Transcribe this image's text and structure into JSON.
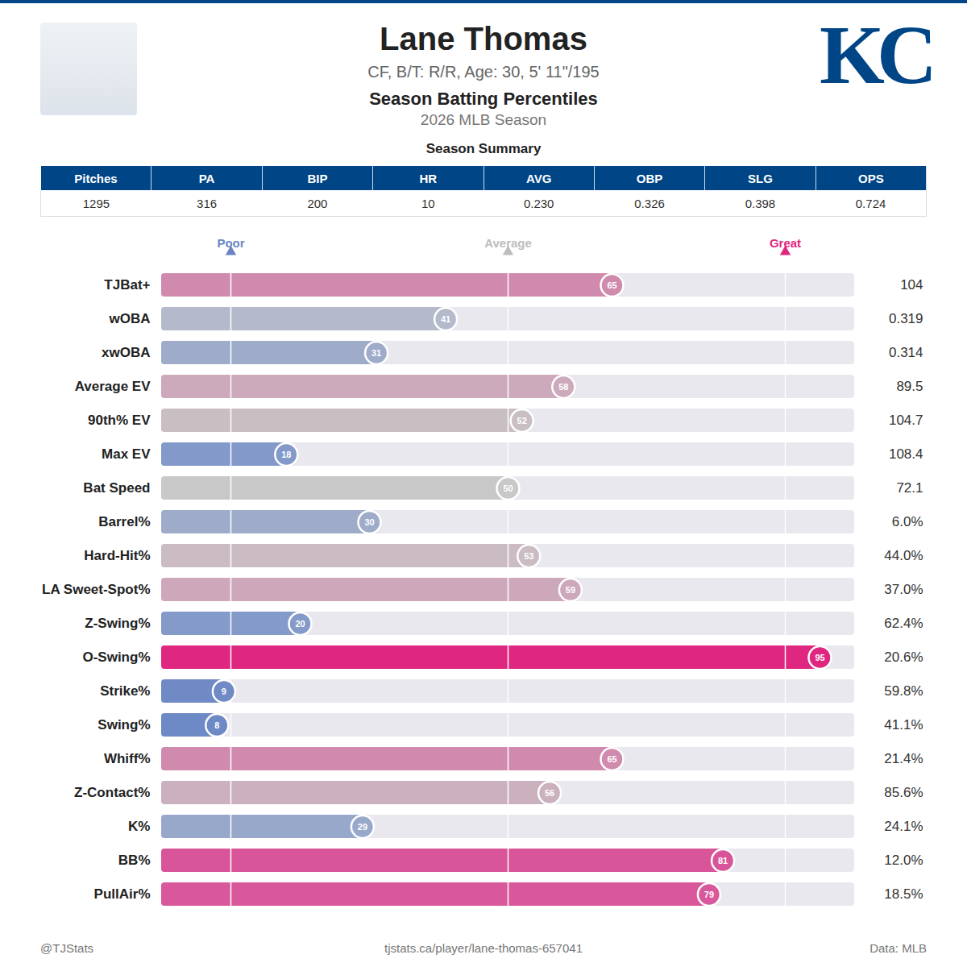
{
  "header": {
    "title": "Lane Thomas",
    "subtitle": "CF, B/T: R/R, Age: 30, 5' 11\"/195",
    "chart_title": "Season Batting Percentiles",
    "season": "2026 MLB Season",
    "logo": "KC"
  },
  "summary": {
    "title": "Season Summary",
    "columns": [
      "Pitches",
      "PA",
      "BIP",
      "HR",
      "AVG",
      "OBP",
      "SLG",
      "OPS"
    ],
    "values": [
      "1295",
      "316",
      "200",
      "10",
      "0.230",
      "0.326",
      "0.398",
      "0.724"
    ]
  },
  "chart_data": {
    "type": "bar",
    "orientation": "horizontal",
    "data_labels": true,
    "categories": [
      "TJBat+",
      "wOBA",
      "xwOBA",
      "Average EV",
      "90th% EV",
      "Max EV",
      "Bat Speed",
      "Barrel%",
      "Hard-Hit%",
      "LA Sweet-Spot%",
      "Z-Swing%",
      "O-Swing%",
      "Strike%",
      "Swing%",
      "Whiff%",
      "Z-Contact%",
      "K%",
      "BB%",
      "PullAir%"
    ],
    "values": [
      65,
      41,
      31,
      58,
      52,
      18,
      50,
      30,
      53,
      59,
      20,
      95,
      9,
      8,
      65,
      56,
      29,
      81,
      79
    ],
    "colors": [
      "#d08aae",
      "#b4bacb",
      "#9eacc9",
      "#cda9bc",
      "#c9bfc3",
      "#8299c9",
      "#c8c8c8",
      "#9eacca",
      "#cbbcc3",
      "#cda8bb",
      "#849bc9",
      "#df2680",
      "#6f8ac5",
      "#6d89c6",
      "#d08aae",
      "#cbb1be",
      "#98a8cb",
      "#d9559a",
      "#d9589b"
    ],
    "metric_values": [
      "104",
      "0.319",
      "0.314",
      "89.5",
      "104.7",
      "108.4",
      "72.1",
      "6.0%",
      "44.0%",
      "37.0%",
      "62.4%",
      "20.6%",
      "59.8%",
      "41.1%",
      "21.4%",
      "85.6%",
      "24.1%",
      "12.0%",
      "18.5%"
    ],
    "xlim": [
      0,
      100
    ],
    "xticks": [
      {
        "value": 10,
        "label": "Poor"
      },
      {
        "value": 50,
        "label": "Average"
      },
      {
        "value": 90,
        "label": "Great"
      }
    ]
  },
  "footer": {
    "left": "@TJStats",
    "center": "tjstats.ca/player/lane-thomas-657041",
    "right": "Data: MLB"
  }
}
